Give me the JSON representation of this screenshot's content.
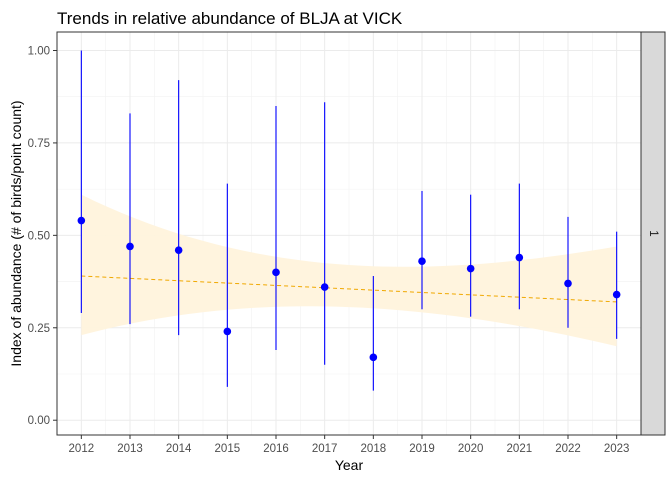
{
  "chart_data": {
    "type": "scatter",
    "title": "Trends in relative abundance of BLJA at VICK",
    "xlabel": "Year",
    "ylabel": "Index of abundance (# of birds/point count)",
    "facet_label": "1",
    "x": [
      2012,
      2013,
      2014,
      2015,
      2016,
      2017,
      2018,
      2019,
      2020,
      2021,
      2022,
      2023
    ],
    "x_tick_labels": [
      "2012",
      "2013",
      "2014",
      "2015",
      "2016",
      "2017",
      "2018",
      "2019",
      "2020",
      "2021",
      "2022",
      "2023"
    ],
    "y_ticks": [
      0.0,
      0.25,
      0.5,
      0.75,
      1.0
    ],
    "y_tick_labels": [
      "0.00",
      "0.25",
      "0.50",
      "0.75",
      "1.00"
    ],
    "ylim": [
      -0.04,
      1.05
    ],
    "xlim": [
      2011.5,
      2023.5
    ],
    "grid": true,
    "series": [
      {
        "values": [
          0.54,
          0.47,
          0.46,
          0.24,
          0.4,
          0.36,
          0.17,
          0.43,
          0.41,
          0.44,
          0.37,
          0.34
        ],
        "lower": [
          0.29,
          0.26,
          0.23,
          0.09,
          0.19,
          0.15,
          0.08,
          0.3,
          0.28,
          0.3,
          0.25,
          0.22
        ],
        "upper": [
          1.0,
          0.83,
          0.92,
          0.64,
          0.85,
          0.86,
          0.39,
          0.62,
          0.61,
          0.64,
          0.55,
          0.51
        ],
        "color": "#0000ff"
      }
    ],
    "trend": {
      "start": 0.39,
      "end": 0.32,
      "ci_start": [
        0.23,
        0.61
      ],
      "ci_end": [
        0.2,
        0.47
      ],
      "line_color": "#f0a800",
      "band_color": "#fff3dc"
    }
  }
}
